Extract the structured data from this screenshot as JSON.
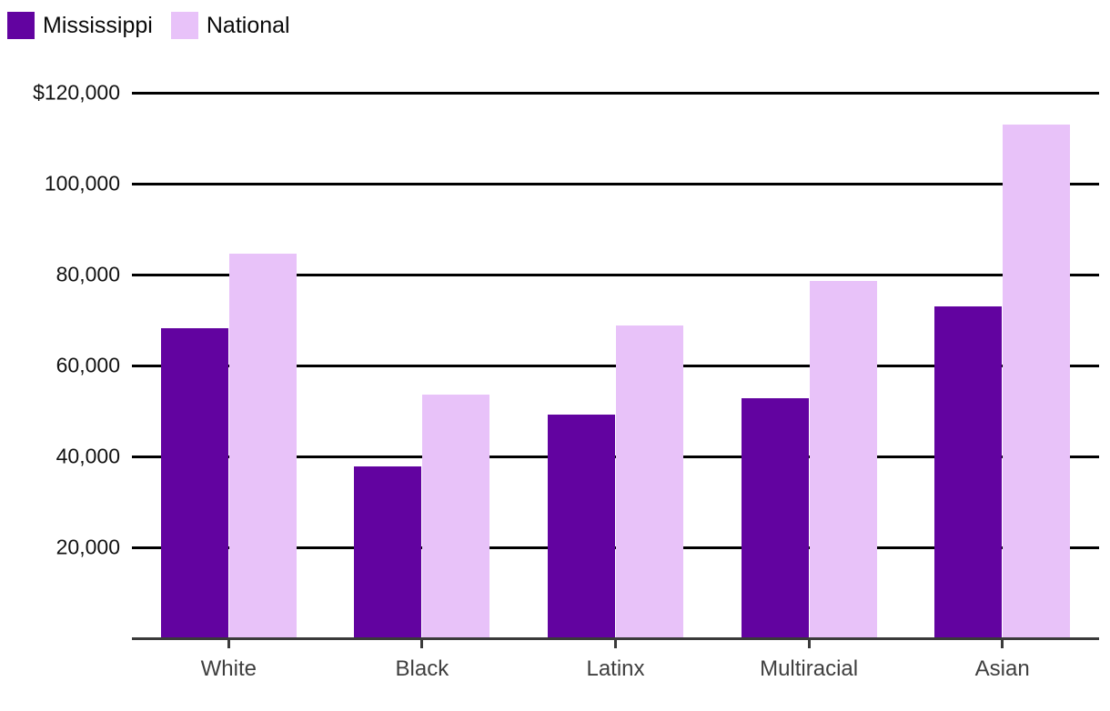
{
  "chart_data": {
    "type": "bar",
    "categories": [
      "White",
      "Black",
      "Latinx",
      "Multiracial",
      "Asian"
    ],
    "series": [
      {
        "name": "Mississippi",
        "color": "#6203A0",
        "values": [
          68200,
          37800,
          49200,
          52800,
          73000
        ]
      },
      {
        "name": "National",
        "color": "#E8C2F9",
        "values": [
          84600,
          53600,
          68800,
          78600,
          113000
        ]
      }
    ],
    "y_axis": {
      "min": 0,
      "max": 120000,
      "tick_interval": 20000,
      "tick_labels_top_to_bottom": [
        "$120,000",
        "100,000",
        "80,000",
        "60,000",
        "40,000",
        "20,000"
      ],
      "grid": true
    },
    "xlabel": "",
    "ylabel": "",
    "legend_position": "top-left",
    "colors": {
      "grid_line": "#000000",
      "axis_line": "#3A3A3A",
      "x_tick_label": "#3F3F3F",
      "y_tick_label": "#121212",
      "legend_text": "#0A0A0A",
      "background": "#FFFFFF"
    }
  }
}
